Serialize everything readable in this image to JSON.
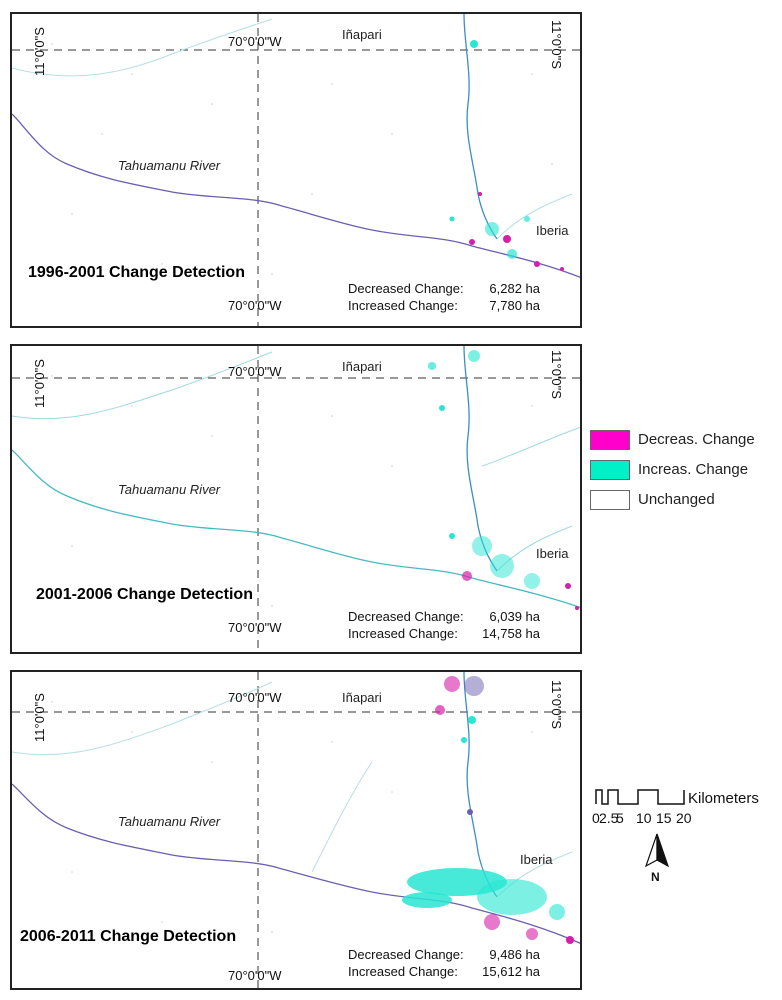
{
  "panels": [
    {
      "title": "1996-2001 Change Detection",
      "town_north": "Iñapari",
      "town_south": "Iberia",
      "river": "Tahuamanu River",
      "coord_w_top": "70°0'0\"W",
      "coord_w_bottom": "70°0'0\"W",
      "coord_s_left": "11°0'0\"S",
      "coord_s_right": "11°0'0\"S",
      "decreased_label": "Decreased Change:",
      "decreased_value": "6,282 ha",
      "increased_label": "Increased Change:",
      "increased_value": "7,780 ha"
    },
    {
      "title": "2001-2006 Change Detection",
      "town_north": "Iñapari",
      "town_south": "Iberia",
      "river": "Tahuamanu River",
      "coord_w_top": "70°0'0\"W",
      "coord_w_bottom": "70°0'0\"W",
      "coord_s_left": "11°0'0\"S",
      "coord_s_right": "11°0'0\"S",
      "decreased_label": "Decreased Change:",
      "decreased_value": "6,039 ha",
      "increased_label": "Increased Change:",
      "increased_value": "14,758 ha"
    },
    {
      "title": "2006-2011 Change Detection",
      "town_north": "Iñapari",
      "town_south": "Iberia",
      "river": "Tahuamanu River",
      "coord_w_top": "70°0'0\"W",
      "coord_w_bottom": "70°0'0\"W",
      "coord_s_left": "11°0'0\"S",
      "coord_s_right": "11°0'0\"S",
      "decreased_label": "Decreased Change:",
      "decreased_value": "9,486 ha",
      "increased_label": "Increased Change:",
      "increased_value": "15,612 ha"
    }
  ],
  "legend": {
    "items": [
      {
        "label": "Decreas. Change",
        "color": "#ff00cc"
      },
      {
        "label": "Increas. Change",
        "color": "#00f0c8"
      },
      {
        "label": "Unchanged",
        "color": "#ffffff"
      }
    ]
  },
  "scale": {
    "unit": "Kilometers",
    "ticks": [
      "0",
      "2.5",
      "5",
      "10",
      "15",
      "20"
    ]
  },
  "north_arrow": {
    "letter": "N"
  },
  "colors": {
    "decrease": "#d61fa8",
    "increase": "#27e6d2",
    "river": "#6a5fb0",
    "dots": "#b9c9d8"
  }
}
